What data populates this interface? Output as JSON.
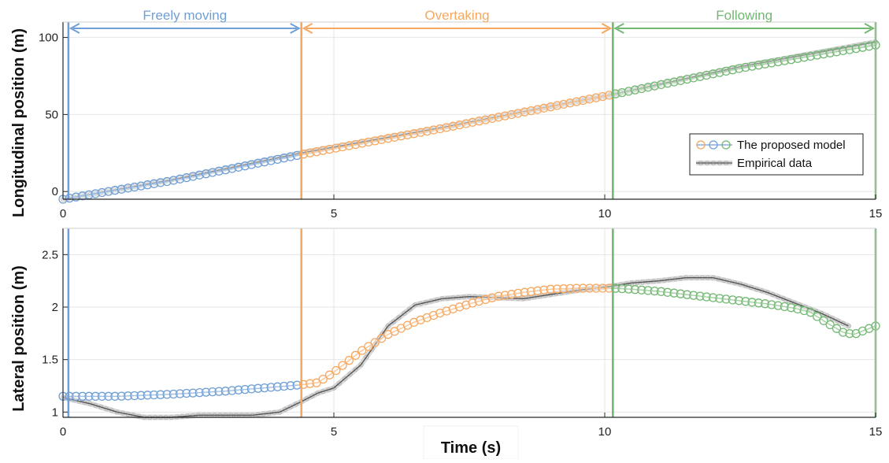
{
  "chart_data": {
    "type": "line",
    "xlabel": "Time (s)",
    "x_ticks": [
      0,
      5,
      10,
      15
    ],
    "xlim": [
      0,
      15
    ],
    "phases": [
      {
        "label": "Freely moving",
        "start": 0.1,
        "end": 4.4,
        "color": "#6f9fd6"
      },
      {
        "label": "Overtaking",
        "start": 4.4,
        "end": 10.15,
        "color": "#f6a860"
      },
      {
        "label": "Following",
        "start": 10.15,
        "end": 15.0,
        "color": "#72b872"
      }
    ],
    "legend": {
      "placement": "right",
      "entries": [
        {
          "label": "The proposed model",
          "colors": [
            "#f6a860",
            "#6f9fd6",
            "#72b872"
          ]
        },
        {
          "label": "Empirical data",
          "colors": [
            "#8c8c8c"
          ]
        }
      ]
    },
    "subplots": [
      {
        "name": "longitudinal",
        "ylabel": "Longitudinal position (m)",
        "ylim": [
          -5,
          110
        ],
        "y_ticks": [
          0,
          50,
          100
        ],
        "model": [
          {
            "t": 0.0,
            "v": -5
          },
          {
            "t": 2.0,
            "v": 7
          },
          {
            "t": 4.4,
            "v": 24
          },
          {
            "t": 7.0,
            "v": 41
          },
          {
            "t": 10.15,
            "v": 63
          },
          {
            "t": 12.5,
            "v": 80
          },
          {
            "t": 15.0,
            "v": 95
          }
        ],
        "empirical": [
          {
            "t": 0.0,
            "v": -5
          },
          {
            "t": 2.0,
            "v": 7.5
          },
          {
            "t": 4.4,
            "v": 25
          },
          {
            "t": 7.0,
            "v": 41.5
          },
          {
            "t": 10.15,
            "v": 63
          },
          {
            "t": 12.5,
            "v": 81
          },
          {
            "t": 15.0,
            "v": 97
          }
        ]
      },
      {
        "name": "lateral",
        "ylabel": "Lateral position (m)",
        "ylim": [
          0.95,
          2.75
        ],
        "y_ticks": [
          1,
          1.5,
          2,
          2.5
        ],
        "model": [
          {
            "t": 0.0,
            "v": 1.15
          },
          {
            "t": 1.0,
            "v": 1.15
          },
          {
            "t": 2.0,
            "v": 1.17
          },
          {
            "t": 3.0,
            "v": 1.2
          },
          {
            "t": 4.4,
            "v": 1.26
          },
          {
            "t": 4.7,
            "v": 1.28
          },
          {
            "t": 5.0,
            "v": 1.38
          },
          {
            "t": 5.5,
            "v": 1.58
          },
          {
            "t": 6.0,
            "v": 1.74
          },
          {
            "t": 6.5,
            "v": 1.86
          },
          {
            "t": 7.0,
            "v": 1.95
          },
          {
            "t": 7.5,
            "v": 2.03
          },
          {
            "t": 8.0,
            "v": 2.1
          },
          {
            "t": 8.5,
            "v": 2.14
          },
          {
            "t": 9.0,
            "v": 2.17
          },
          {
            "t": 9.5,
            "v": 2.18
          },
          {
            "t": 10.15,
            "v": 2.18
          },
          {
            "t": 10.5,
            "v": 2.17
          },
          {
            "t": 11.0,
            "v": 2.15
          },
          {
            "t": 11.5,
            "v": 2.12
          },
          {
            "t": 12.0,
            "v": 2.09
          },
          {
            "t": 12.5,
            "v": 2.06
          },
          {
            "t": 13.0,
            "v": 2.03
          },
          {
            "t": 13.5,
            "v": 1.99
          },
          {
            "t": 13.8,
            "v": 1.95
          },
          {
            "t": 14.1,
            "v": 1.85
          },
          {
            "t": 14.4,
            "v": 1.76
          },
          {
            "t": 14.6,
            "v": 1.74
          },
          {
            "t": 14.8,
            "v": 1.78
          },
          {
            "t": 15.0,
            "v": 1.82
          }
        ],
        "empirical": [
          {
            "t": 0.0,
            "v": 1.14
          },
          {
            "t": 0.5,
            "v": 1.08
          },
          {
            "t": 1.0,
            "v": 1.0
          },
          {
            "t": 1.5,
            "v": 0.95
          },
          {
            "t": 2.0,
            "v": 0.95
          },
          {
            "t": 2.5,
            "v": 0.97
          },
          {
            "t": 3.0,
            "v": 0.97
          },
          {
            "t": 3.5,
            "v": 0.97
          },
          {
            "t": 4.0,
            "v": 1.0
          },
          {
            "t": 4.4,
            "v": 1.1
          },
          {
            "t": 4.7,
            "v": 1.18
          },
          {
            "t": 5.0,
            "v": 1.23
          },
          {
            "t": 5.5,
            "v": 1.45
          },
          {
            "t": 6.0,
            "v": 1.82
          },
          {
            "t": 6.5,
            "v": 2.02
          },
          {
            "t": 7.0,
            "v": 2.08
          },
          {
            "t": 7.5,
            "v": 2.1
          },
          {
            "t": 8.0,
            "v": 2.09
          },
          {
            "t": 8.5,
            "v": 2.08
          },
          {
            "t": 9.0,
            "v": 2.12
          },
          {
            "t": 9.5,
            "v": 2.16
          },
          {
            "t": 10.15,
            "v": 2.2
          },
          {
            "t": 10.5,
            "v": 2.23
          },
          {
            "t": 11.0,
            "v": 2.25
          },
          {
            "t": 11.5,
            "v": 2.28
          },
          {
            "t": 12.0,
            "v": 2.28
          },
          {
            "t": 12.5,
            "v": 2.22
          },
          {
            "t": 13.0,
            "v": 2.14
          },
          {
            "t": 13.5,
            "v": 2.04
          },
          {
            "t": 14.0,
            "v": 1.94
          },
          {
            "t": 14.5,
            "v": 1.82
          }
        ]
      }
    ]
  }
}
